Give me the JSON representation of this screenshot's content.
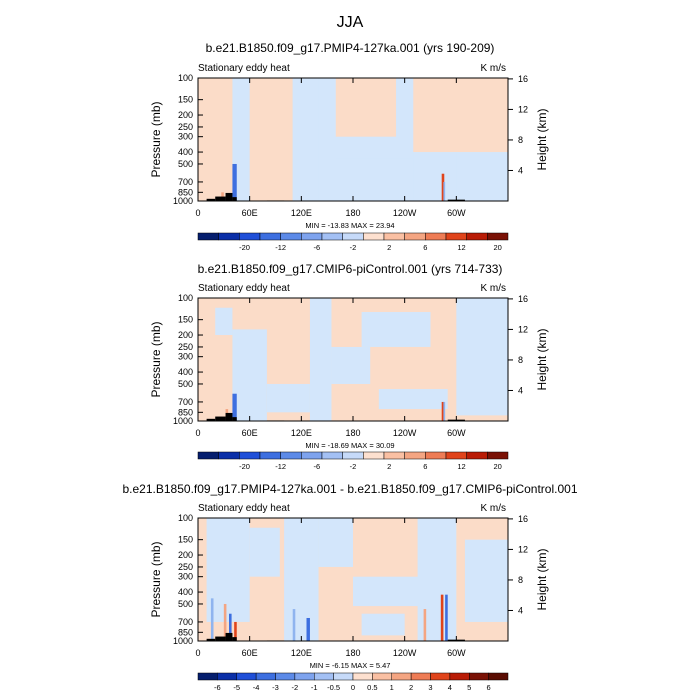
{
  "title": "JJA",
  "chart_data": [
    {
      "type": "heatmap",
      "title": "b.e21.B1850.f09_g17.PMIP4-127ka.001 (yrs 190-209)",
      "left_label": "Stationary eddy heat",
      "units": "K m/s",
      "ylabel": "Pressure (mb)",
      "ylabel_right": "Height (km)",
      "y_ticks": [
        "100",
        "150",
        "200",
        "250",
        "300",
        "400",
        "500",
        "700",
        "850",
        "1000"
      ],
      "y_ticks_right": [
        "16",
        "12",
        "8",
        "4"
      ],
      "x_ticks": [
        "0",
        "60E",
        "120E",
        "180",
        "120W",
        "60W"
      ],
      "minmax": "MIN = -13.83  MAX = 23.94",
      "colorbar_labels": [
        "-20",
        "-12",
        "-6",
        "-2",
        "2",
        "6",
        "12",
        "20"
      ]
    },
    {
      "type": "heatmap",
      "title": "b.e21.B1850.f09_g17.CMIP6-piControl.001 (yrs 714-733)",
      "left_label": "Stationary eddy heat",
      "units": "K m/s",
      "ylabel": "Pressure (mb)",
      "ylabel_right": "Height (km)",
      "y_ticks": [
        "100",
        "150",
        "200",
        "250",
        "300",
        "400",
        "500",
        "700",
        "850",
        "1000"
      ],
      "y_ticks_right": [
        "16",
        "12",
        "8",
        "4"
      ],
      "x_ticks": [
        "0",
        "60E",
        "120E",
        "180",
        "120W",
        "60W"
      ],
      "minmax": "MIN = -18.69  MAX = 30.09",
      "colorbar_labels": [
        "-20",
        "-12",
        "-6",
        "-2",
        "2",
        "6",
        "12",
        "20"
      ]
    },
    {
      "type": "heatmap",
      "title": "b.e21.B1850.f09_g17.PMIP4-127ka.001 - b.e21.B1850.f09_g17.CMIP6-piControl.001",
      "left_label": "Stationary eddy heat",
      "units": "K m/s",
      "ylabel": "Pressure (mb)",
      "ylabel_right": "Height (km)",
      "y_ticks": [
        "100",
        "150",
        "200",
        "250",
        "300",
        "400",
        "500",
        "700",
        "850",
        "1000"
      ],
      "y_ticks_right": [
        "16",
        "12",
        "8",
        "4"
      ],
      "x_ticks": [
        "0",
        "60E",
        "120E",
        "180",
        "120W",
        "60W"
      ],
      "minmax": "MIN = -6.15  MAX = 5.47",
      "colorbar_labels": [
        "-6",
        "-5",
        "-4",
        "-3",
        "-2",
        "-1",
        "-0.5",
        "0",
        "0.5",
        "1",
        "2",
        "3",
        "4",
        "5",
        "6"
      ]
    }
  ],
  "colors": {
    "pos_light": "#fbdcc8",
    "neg_light": "#d3e6fb",
    "neg_mid": "#8fb4ef",
    "neg_strong": "#3d6fe0",
    "pos_mid": "#f4a582",
    "pos_strong": "#e0441b",
    "terrain": "#000000",
    "colorbar_main": [
      "#051e6e",
      "#0a2fa8",
      "#1f4fd8",
      "#3d6fe0",
      "#5c8ae8",
      "#7ea3ee",
      "#a3c0f4",
      "#c6daf9",
      "#fde0cf",
      "#fac0a3",
      "#f4a582",
      "#ee7c55",
      "#e0441b",
      "#b91c06",
      "#7a1105"
    ],
    "colorbar_diff": [
      "#051e6e",
      "#0a2fa8",
      "#1f4fd8",
      "#3d6fe0",
      "#5c8ae8",
      "#7ea3ee",
      "#a3c0f4",
      "#c6daf9",
      "#fde0cf",
      "#fac0a3",
      "#f4a582",
      "#ee7c55",
      "#e0441b",
      "#b91c06",
      "#7a1105",
      "#5a0c02"
    ]
  }
}
